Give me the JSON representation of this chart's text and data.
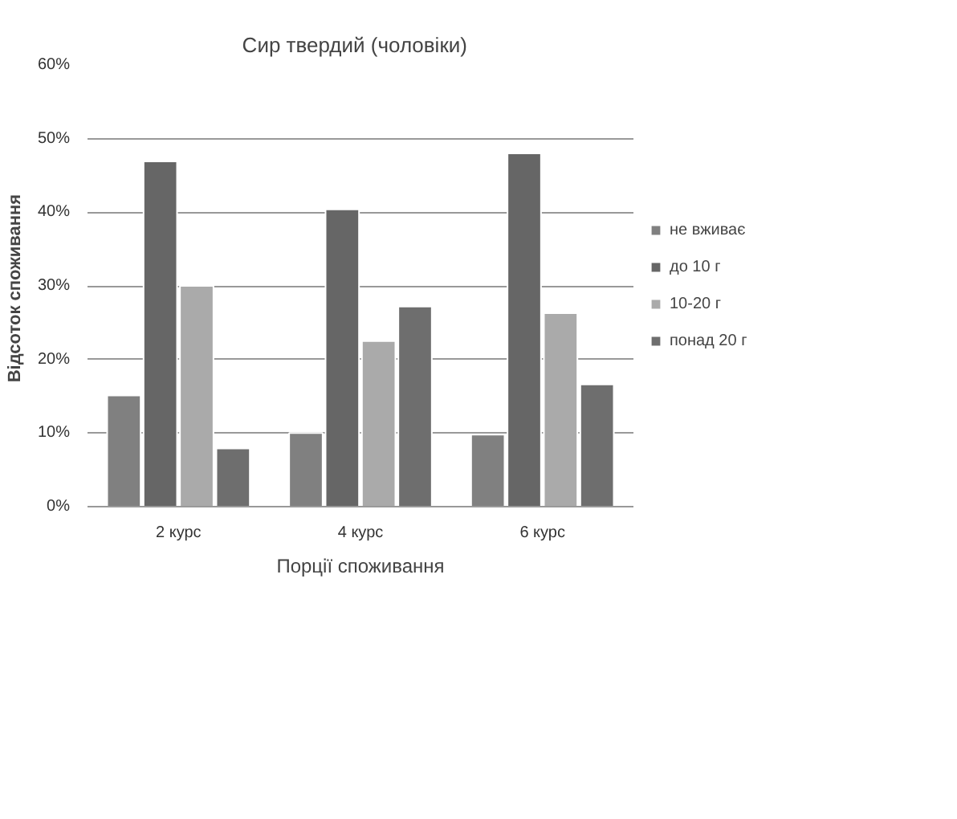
{
  "chart_data": {
    "type": "bar",
    "title": "Сир твердий   (чоловіки)",
    "xlabel": "Порції споживання",
    "ylabel": "Відсоток  споживання",
    "categories": [
      "2 курс",
      "4 курс",
      "6 курс"
    ],
    "series": [
      {
        "name": "не вживає",
        "color": "#808080",
        "values": [
          15.1,
          10,
          9.8
        ]
      },
      {
        "name": "до 10 г",
        "color": "#666666",
        "values": [
          46.9,
          40.4,
          48
        ]
      },
      {
        "name": "10-20 г",
        "color": "#aaaaaa",
        "values": [
          30,
          22.5,
          26.3
        ]
      },
      {
        "name": "понад 20 г",
        "color": "#6e6e6e",
        "values": [
          7.9,
          27.2,
          16.6
        ]
      }
    ],
    "ylim": [
      0,
      60
    ],
    "yticks": [
      {
        "value": 0,
        "label": "0%"
      },
      {
        "value": 10,
        "label": "10%"
      },
      {
        "value": 20,
        "label": "20%"
      },
      {
        "value": 30,
        "label": "30%"
      },
      {
        "value": 40,
        "label": "40%"
      },
      {
        "value": 50,
        "label": "50%"
      },
      {
        "value": 60,
        "label": "60%"
      }
    ],
    "grid": "y",
    "legend": "right"
  }
}
